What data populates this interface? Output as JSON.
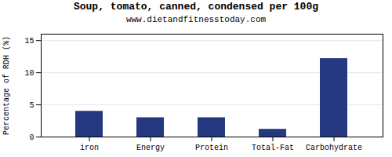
{
  "chart_data": {
    "type": "bar",
    "title": "Soup, tomato, canned, condensed per 100g",
    "subtitle": "www.dietandfitnesstoday.com",
    "categories": [
      "iron",
      "Energy",
      "Protein",
      "Total-Fat",
      "Carbohydrate"
    ],
    "values": [
      4.0,
      3.0,
      3.0,
      1.2,
      12.2
    ],
    "color": "#253980",
    "ylabel": "Percentage of RDH (%)",
    "ylim": [
      0,
      16
    ],
    "yticks": [
      0,
      5,
      10,
      15
    ],
    "grid": true
  }
}
